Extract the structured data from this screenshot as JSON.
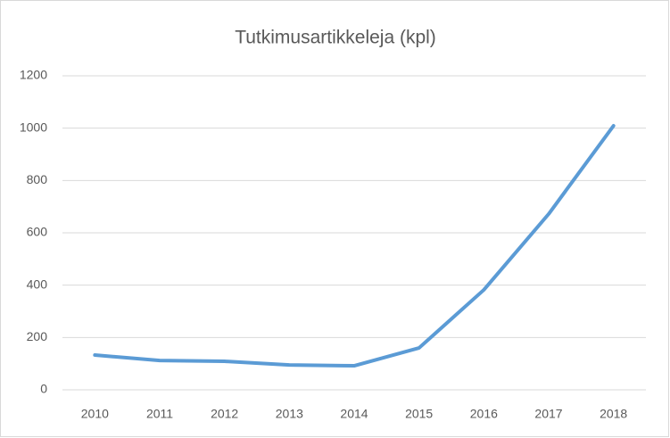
{
  "chart_data": {
    "type": "line",
    "title": "Tutkimusartikkeleja (kpl)",
    "categories": [
      "2010",
      "2011",
      "2012",
      "2013",
      "2014",
      "2015",
      "2016",
      "2017",
      "2018"
    ],
    "values": [
      133,
      112,
      109,
      95,
      92,
      160,
      382,
      672,
      1009
    ],
    "color": "#5b9bd5",
    "ylim": [
      0,
      1200
    ],
    "yticks": [
      0,
      200,
      400,
      600,
      800,
      1000,
      1200
    ],
    "grid": true
  }
}
